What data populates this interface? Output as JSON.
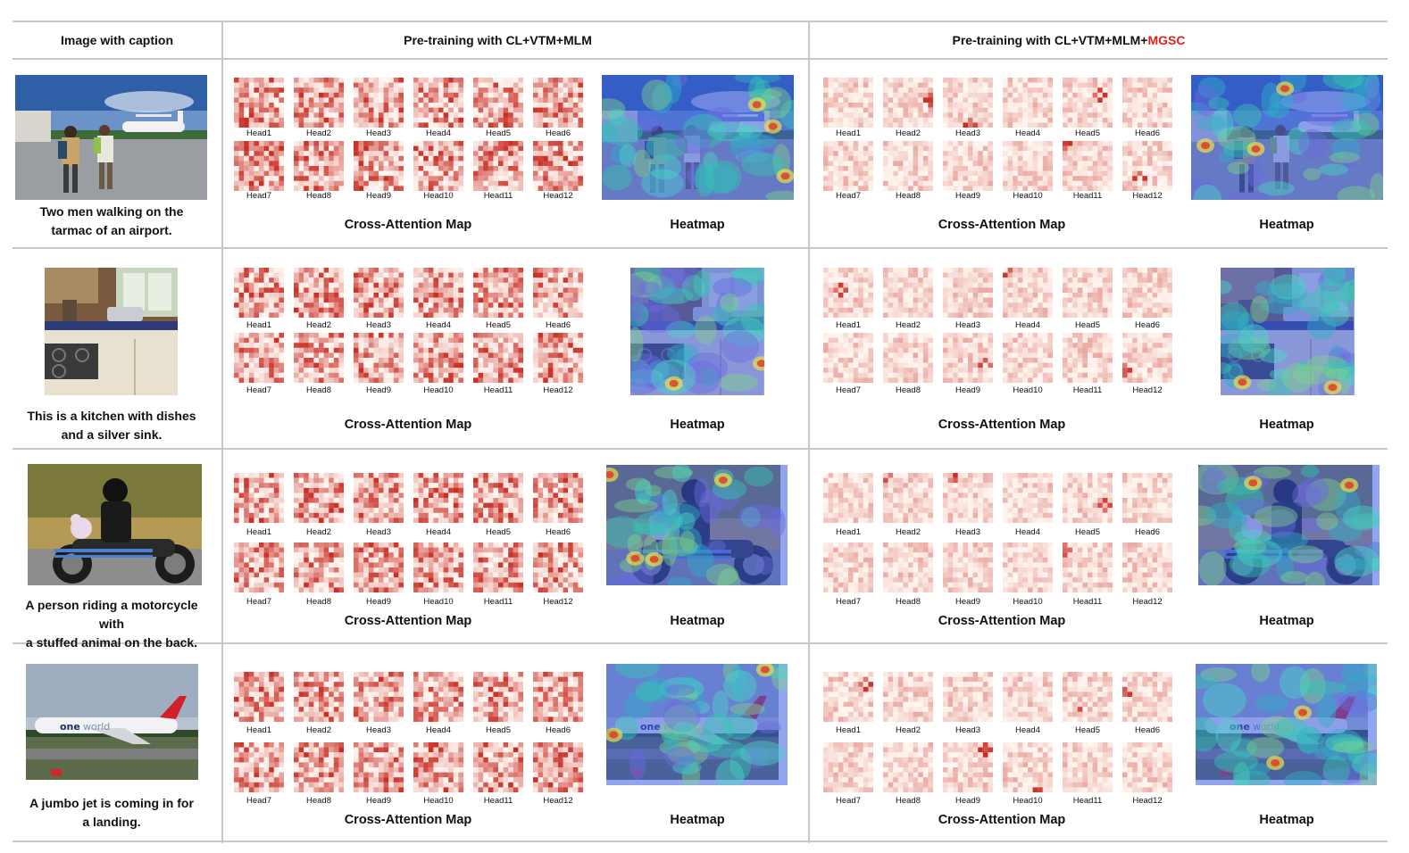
{
  "header": {
    "col1": "Image with caption",
    "col2": "Pre-training with CL+VTM+MLM",
    "col3_prefix": "Pre-training with CL+VTM+MLM+",
    "col3_highlight": "MGSC"
  },
  "labels": {
    "cross_attention": "Cross-Attention Map",
    "heatmap": "Heatmap",
    "heads": [
      "Head1",
      "Head2",
      "Head3",
      "Head4",
      "Head5",
      "Head6",
      "Head7",
      "Head8",
      "Head9",
      "Head10",
      "Head11",
      "Head12"
    ]
  },
  "colors": {
    "highlight": "#e0221c",
    "attention": "#e2412e",
    "grid": "#c8c8c8"
  },
  "rows": [
    {
      "caption_line1": "Two men walking on the",
      "caption_line2": "tarmac of an airport.",
      "scene": "airport"
    },
    {
      "caption_line1": "This is a kitchen with dishes",
      "caption_line2": "and a silver sink.",
      "scene": "kitchen"
    },
    {
      "caption_line1": "A person riding a motorcycle with",
      "caption_line2": "a stuffed animal on the back.",
      "scene": "motorcycle"
    },
    {
      "caption_line1": "A jumbo jet is coming in for",
      "caption_line2": "a landing.",
      "scene": "jet"
    }
  ]
}
